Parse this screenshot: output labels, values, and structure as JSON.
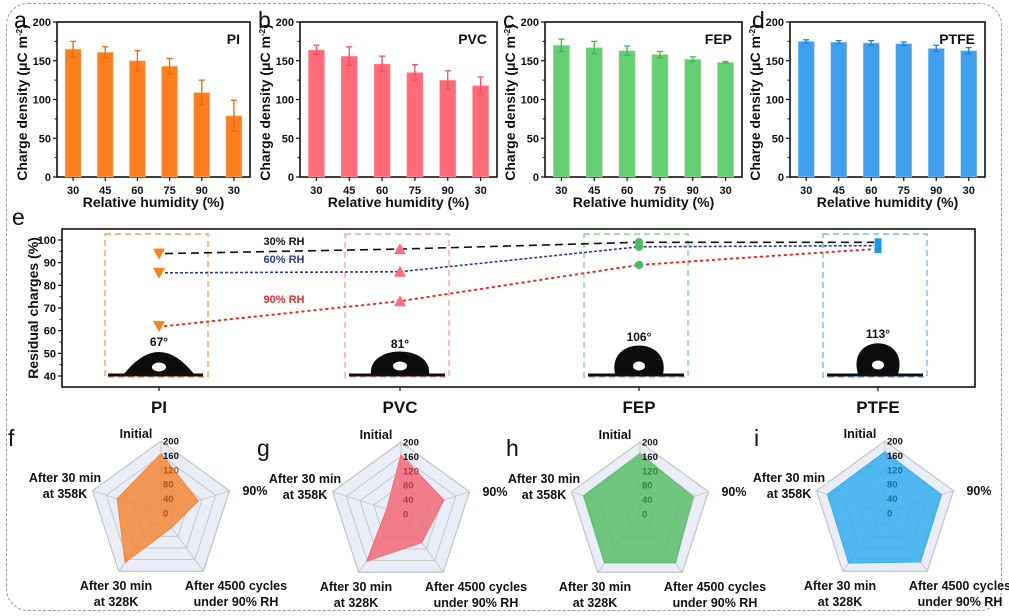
{
  "chart_data": [
    {
      "panel": "a",
      "type": "bar",
      "title": "PI",
      "color": "#ff7f1e",
      "err_color": "#e86a10",
      "xlabel": "Relative humidity (%)",
      "ylabel": "Charge density (μC m⁻²)",
      "ylim": [
        0,
        200
      ],
      "yticks": [
        0,
        50,
        100,
        150,
        200
      ],
      "categories": [
        "30",
        "45",
        "60",
        "75",
        "90",
        "30"
      ],
      "values": [
        165,
        161,
        150,
        143,
        109,
        79
      ],
      "errors": [
        10,
        7,
        13,
        10,
        16,
        20
      ]
    },
    {
      "panel": "b",
      "type": "bar",
      "title": "PVC",
      "color": "#ff6b78",
      "err_color": "#f2525f",
      "xlabel": "Relative humidity (%)",
      "ylabel": "Charge density (μC m⁻²)",
      "ylim": [
        0,
        200
      ],
      "yticks": [
        0,
        50,
        100,
        150,
        200
      ],
      "categories": [
        "30",
        "45",
        "60",
        "75",
        "90",
        "30"
      ],
      "values": [
        164,
        156,
        146,
        135,
        125,
        118
      ],
      "errors": [
        6,
        12,
        10,
        10,
        12,
        11
      ]
    },
    {
      "panel": "c",
      "type": "bar",
      "title": "FEP",
      "color": "#64cf73",
      "err_color": "#3cb84c",
      "xlabel": "Relative humidity (%)",
      "ylabel": "Charge density (μC m⁻²)",
      "ylim": [
        0,
        200
      ],
      "yticks": [
        0,
        50,
        100,
        150,
        200
      ],
      "categories": [
        "30",
        "45",
        "60",
        "75",
        "90",
        "30"
      ],
      "values": [
        170,
        167,
        163,
        158,
        152,
        148
      ],
      "errors": [
        8,
        8,
        6,
        4,
        3,
        1
      ]
    },
    {
      "panel": "d",
      "type": "bar",
      "title": "PTFE",
      "color": "#3fa0f0",
      "err_color": "#1a84e0",
      "xlabel": "Relative humidity (%)",
      "ylabel": "Charge density (μC m⁻²)",
      "ylim": [
        0,
        200
      ],
      "yticks": [
        0,
        50,
        100,
        150,
        200
      ],
      "categories": [
        "30",
        "45",
        "60",
        "75",
        "90",
        "30"
      ],
      "values": [
        175,
        174,
        173,
        172,
        166,
        163
      ],
      "errors": [
        2,
        2,
        3,
        2,
        4,
        4
      ]
    },
    {
      "panel": "e",
      "type": "scatter",
      "ylabel": "Residual charges (%)",
      "ylim": [
        35,
        105
      ],
      "yticks": [
        40,
        50,
        60,
        70,
        80,
        90,
        100
      ],
      "categories": [
        "PI",
        "PVC",
        "FEP",
        "PTFE"
      ],
      "contact_angles": [
        "67°",
        "81°",
        "106°",
        "113°"
      ],
      "material_colors": [
        "#ff7f1e",
        "#ff6b78",
        "#4cbb5c",
        "#1a9ae6"
      ],
      "box_colors": [
        "#f4a25e",
        "#f7a5ae",
        "#8fd58f",
        "#7ab9ee"
      ],
      "markers": [
        "triangle-down",
        "triangle-up",
        "circle",
        "square"
      ],
      "series": [
        {
          "name": "30% RH",
          "color": "#111111",
          "dash": "dashed",
          "values": [
            94,
            96,
            99,
            99
          ]
        },
        {
          "name": "60% RH",
          "color": "#2a3f8f",
          "dash": "short-dashed",
          "values": [
            85.5,
            86,
            97,
            97.5
          ]
        },
        {
          "name": "90% RH",
          "color": "#f02a2a",
          "dash": "dotted",
          "values": [
            62,
            73,
            89,
            96
          ]
        }
      ]
    },
    {
      "panel": "f",
      "type": "radar",
      "color": "#f5873a",
      "axes": [
        "Initial",
        "90%",
        "After 4500 cycles under 90% RH",
        "After 30 min at 328K",
        "After 30 min at 358K"
      ],
      "rticks": [
        0,
        40,
        80,
        120,
        160,
        200
      ],
      "rlim": [
        0,
        200
      ],
      "rtick_color": "#b5561a",
      "values": [
        165,
        109,
        50,
        170,
        128
      ]
    },
    {
      "panel": "g",
      "type": "radar",
      "color": "#f56a78",
      "axes": [
        "Initial",
        "90%",
        "After 4500 cycles under 90% RH",
        "After 30 min at 328K",
        "After 30 min at 358K"
      ],
      "rticks": [
        0,
        40,
        80,
        120,
        160,
        200
      ],
      "rlim": [
        0,
        200
      ],
      "rtick_color": "#b23a48",
      "values": [
        164,
        125,
        98,
        162,
        42
      ]
    },
    {
      "panel": "h",
      "type": "radar",
      "color": "#5cbd6c",
      "axes": [
        "Initial",
        "90%",
        "After 4500 cycles under 90% RH",
        "After 30 min at 328K",
        "After 30 min at 358K"
      ],
      "rticks": [
        0,
        40,
        80,
        120,
        160,
        200
      ],
      "rlim": [
        0,
        200
      ],
      "rtick_color": "#2e8a3c",
      "values": [
        168,
        155,
        168,
        168,
        165
      ]
    },
    {
      "panel": "i",
      "type": "radar",
      "color": "#36aef0",
      "axes": [
        "Initial",
        "90%",
        "After 4500 cycles under 90% RH",
        "After 30 min at 328K",
        "After 30 min at 358K"
      ],
      "rticks": [
        0,
        40,
        80,
        120,
        160,
        200
      ],
      "rlim": [
        0,
        200
      ],
      "rtick_color": "#1a6fa8",
      "values": [
        170,
        165,
        168,
        172,
        168
      ]
    }
  ],
  "labels": {
    "panel_letters": [
      "a",
      "b",
      "c",
      "d",
      "e",
      "f",
      "g",
      "h",
      "i"
    ],
    "radar_axis_lines": [
      [
        "Initial"
      ],
      [
        "90%"
      ],
      [
        "After 4500 cycles",
        "under 90% RH"
      ],
      [
        "After 30 min",
        "at 328K"
      ],
      [
        "After 30 min",
        "at 358K"
      ]
    ],
    "ylabel_main": "Charge density (μC m",
    "ylabel_sup": "-2",
    "ylabel_close": ")"
  }
}
